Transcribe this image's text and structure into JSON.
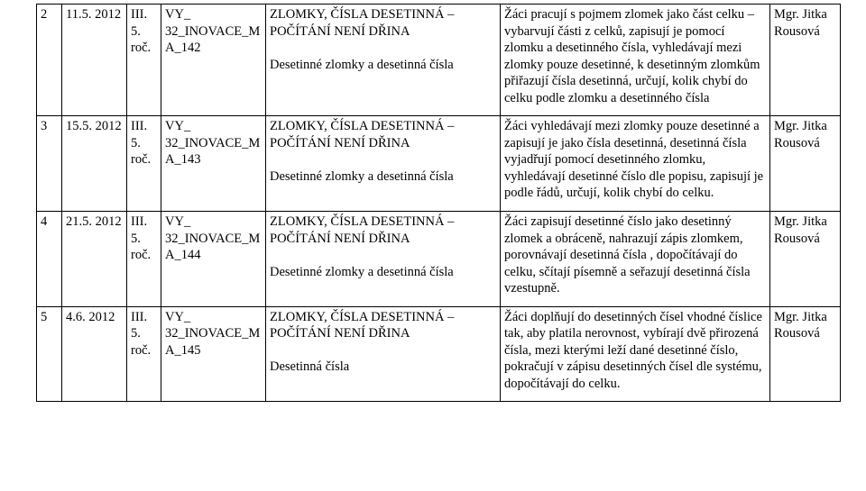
{
  "rows": [
    {
      "idx": "2",
      "date": "11.5. 2012",
      "grade": "III. 5. roč.",
      "code": "VY_ 32_INOVACE_MA_142",
      "topic": "ZLOMKY, ČÍSLA DESETINNÁ – POČÍTÁNÍ NENÍ DŘINA\n\nDesetinné zlomky a desetinná čísla",
      "desc": "Žáci pracují s pojmem zlomek jako část celku – vybarvují části z celků, zapisují je pomocí zlomku a desetinného čísla, vyhledávají mezi zlomky pouze desetinné, k desetinným zlomkům přiřazují čísla desetinná, určují, kolik chybí do celku podle zlomku a desetinného čísla",
      "author": "Mgr. Jitka Rousová"
    },
    {
      "idx": "3",
      "date": "15.5. 2012",
      "grade": "III. 5. roč.",
      "code": "VY_ 32_INOVACE_MA_143",
      "topic": "ZLOMKY, ČÍSLA DESETINNÁ – POČÍTÁNÍ NENÍ DŘINA\n\nDesetinné zlomky a desetinná čísla",
      "desc": "Žáci vyhledávají mezi zlomky pouze desetinné a zapisují je jako čísla desetinná, desetinná čísla vyjadřují pomocí desetinného zlomku, vyhledávají desetinné číslo dle popisu, zapisují je podle řádů, určují, kolik chybí do celku.",
      "author": "Mgr. Jitka Rousová"
    },
    {
      "idx": "4",
      "date": "21.5. 2012",
      "grade": "III. 5. roč.",
      "code": "VY_ 32_INOVACE_MA_144",
      "topic": "ZLOMKY, ČÍSLA DESETINNÁ – POČÍTÁNÍ NENÍ DŘINA\n\nDesetinné zlomky a desetinná čísla",
      "desc": "Žáci zapisují desetinné číslo jako desetinný zlomek a obráceně,  nahrazují zápis zlomkem, porovnávají desetinná čísla , dopočítávají do celku, sčítají písemně a seřazují desetinná čísla vzestupně.",
      "author": "Mgr. Jitka Rousová"
    },
    {
      "idx": "5",
      "date": "4.6. 2012",
      "grade": "III. 5. roč.",
      "code": "VY_ 32_INOVACE_MA_145",
      "topic": "ZLOMKY, ČÍSLA DESETINNÁ – POČÍTÁNÍ NENÍ DŘINA\n\nDesetinná čísla",
      "desc": "Žáci doplňují do desetinných čísel vhodné číslice tak, aby platila nerovnost, vybírají dvě přirozená čísla, mezi kterými leží dané desetinné číslo, pokračují  v zápisu desetinných čísel dle systému, dopočítávají do celku.",
      "author": "Mgr. Jitka Rousová"
    }
  ]
}
